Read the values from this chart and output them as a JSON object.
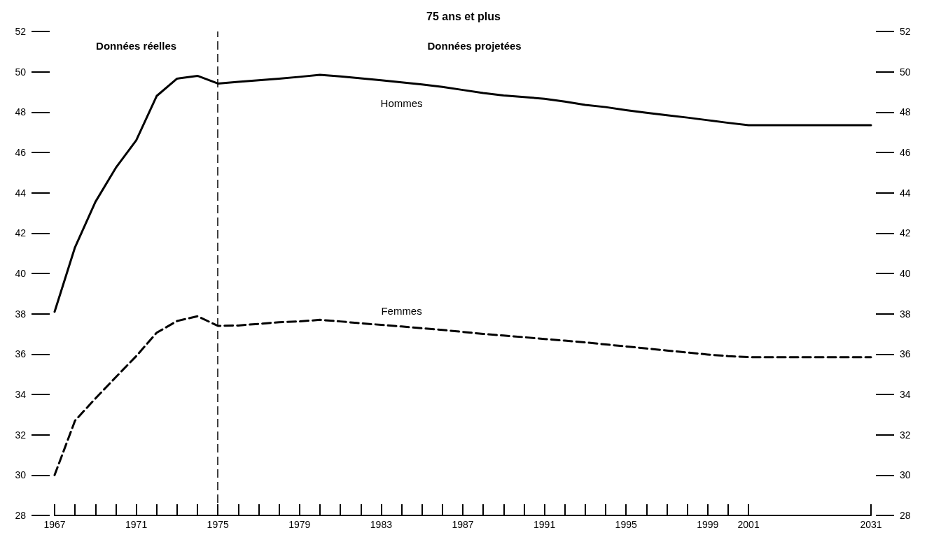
{
  "chart_data": {
    "type": "line",
    "title": "75 ans et plus",
    "categories": [
      "1967",
      null,
      null,
      null,
      "1971",
      null,
      null,
      null,
      "1975",
      null,
      null,
      null,
      "1979",
      null,
      null,
      null,
      "1983",
      null,
      null,
      null,
      "1987",
      null,
      null,
      null,
      "1991",
      null,
      null,
      null,
      "1995",
      null,
      null,
      null,
      "1999",
      null,
      "2001",
      null,
      null,
      null,
      null,
      null,
      "2031"
    ],
    "series": [
      {
        "name": "Hommes",
        "color": "#000000",
        "line_style": "solid",
        "values": [
          38.1,
          41.3,
          43.55,
          45.24,
          46.6,
          48.8,
          49.66,
          49.8,
          49.42,
          49.5,
          49.58,
          49.66,
          49.75,
          49.85,
          49.77,
          49.68,
          49.58,
          49.48,
          49.37,
          49.25,
          49.1,
          48.95,
          48.83,
          48.75,
          48.66,
          48.52,
          48.36,
          48.25,
          48.1,
          47.97,
          47.85,
          47.73,
          47.6,
          47.47,
          47.35,
          null,
          null,
          null,
          null,
          null,
          47.35
        ]
      },
      {
        "name": "Femmes",
        "color": "#000000",
        "line_style": "dashed",
        "values": [
          30.0,
          32.7,
          33.8,
          34.86,
          35.9,
          37.06,
          37.64,
          37.88,
          37.4,
          37.42,
          37.5,
          37.58,
          37.62,
          37.7,
          37.62,
          37.53,
          37.45,
          37.37,
          37.28,
          37.2,
          37.1,
          37.0,
          36.92,
          36.84,
          36.75,
          36.67,
          36.58,
          36.48,
          36.38,
          36.28,
          36.18,
          36.08,
          35.98,
          35.9,
          35.85,
          null,
          null,
          null,
          null,
          null,
          35.85
        ]
      }
    ],
    "ylim": [
      28,
      52
    ],
    "yticks": [
      28,
      30,
      32,
      34,
      36,
      38,
      40,
      42,
      44,
      46,
      48,
      50,
      52
    ],
    "y2lim": [
      28,
      52
    ],
    "y2ticks": [
      28,
      30,
      32,
      34,
      36,
      38,
      40,
      42,
      44,
      46,
      48,
      50,
      52
    ],
    "ref_lines": [
      {
        "axis": "x",
        "value": "1975",
        "line_style": "dashed"
      }
    ],
    "annotations": [
      "Données réelles",
      "Données projetées"
    ],
    "grid": false,
    "legend": false,
    "marker": "none"
  }
}
